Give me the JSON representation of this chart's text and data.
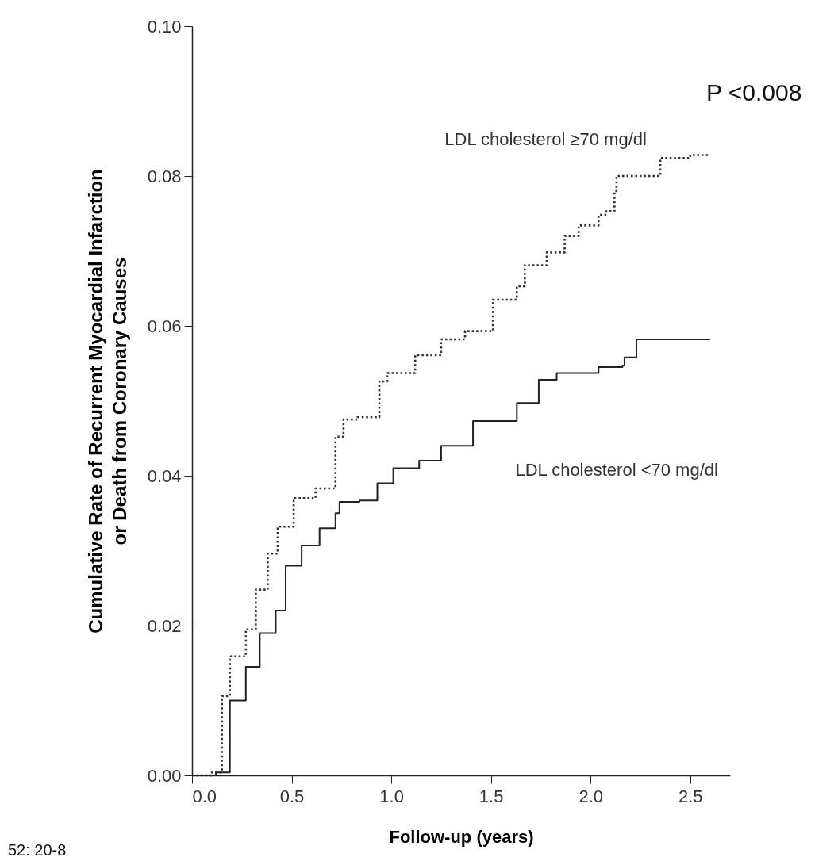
{
  "chart_data": {
    "type": "step",
    "xlabel": "Follow-up (years)",
    "ylabel": "Cumulative Rate of Recurrent Myocardial Infarction\nor Death from Coronary Causes",
    "xlim": [
      0,
      2.7
    ],
    "ylim": [
      0,
      0.1
    ],
    "xticks": [
      {
        "value": 0,
        "label": "0.0"
      },
      0.5,
      {
        "value": 1,
        "label": "1.0"
      },
      1.5,
      {
        "value": 2,
        "label": "2.0"
      },
      2.5
    ],
    "yticks": [
      {
        "value": 0,
        "label": "0.00"
      },
      {
        "value": 0.02,
        "label": "0.02"
      },
      {
        "value": 0.04,
        "label": "0.04"
      },
      {
        "value": 0.06,
        "label": "0.06"
      },
      {
        "value": 0.08,
        "label": "0.08"
      },
      {
        "value": 0.1,
        "label": "0.10"
      }
    ],
    "grid": false,
    "legend": false,
    "marker": "none",
    "series": [
      {
        "name": "LDL cholesterol ≥70 mg/dl",
        "color": "#333333",
        "line_style": "dotted",
        "x": [
          0,
          0.1,
          0.15,
          0.19,
          0.27,
          0.32,
          0.38,
          0.43,
          0.51,
          0.62,
          0.72,
          0.76,
          0.83,
          0.94,
          0.98,
          1.12,
          1.25,
          1.37,
          1.51,
          1.63,
          1.67,
          1.78,
          1.87,
          1.94,
          2.04,
          2.08,
          2.12,
          2.13,
          2.33,
          2.35,
          2.49,
          2.5,
          2.6
        ],
        "values": [
          0,
          0.0004,
          0.0106,
          0.0159,
          0.0195,
          0.0248,
          0.0296,
          0.0332,
          0.037,
          0.0383,
          0.0452,
          0.0475,
          0.0478,
          0.0526,
          0.0537,
          0.0561,
          0.0582,
          0.0593,
          0.0635,
          0.0653,
          0.0681,
          0.0698,
          0.072,
          0.0734,
          0.0748,
          0.0753,
          0.078,
          0.08,
          0.08,
          0.0824,
          0.0824,
          0.0828,
          0.0828
        ]
      },
      {
        "name": "LDL cholesterol <70 mg/dl",
        "color": "#222222",
        "line_style": "solid",
        "x": [
          0,
          0.11,
          0.12,
          0.19,
          0.27,
          0.34,
          0.42,
          0.47,
          0.55,
          0.64,
          0.72,
          0.74,
          0.84,
          0.93,
          1.01,
          1.14,
          1.25,
          1.41,
          1.63,
          1.74,
          1.83,
          2.03,
          2.04,
          2.16,
          2.17,
          2.21,
          2.23,
          2.6
        ],
        "values": [
          0,
          0,
          0.0004,
          0.01,
          0.0145,
          0.019,
          0.022,
          0.028,
          0.0307,
          0.033,
          0.035,
          0.0365,
          0.0367,
          0.039,
          0.041,
          0.042,
          0.044,
          0.0473,
          0.0497,
          0.0528,
          0.0537,
          0.0537,
          0.0545,
          0.0547,
          0.0558,
          0.0558,
          0.0582,
          0.0582
        ]
      }
    ],
    "annotations": [
      "P <0.008",
      "52: 20-8"
    ]
  }
}
